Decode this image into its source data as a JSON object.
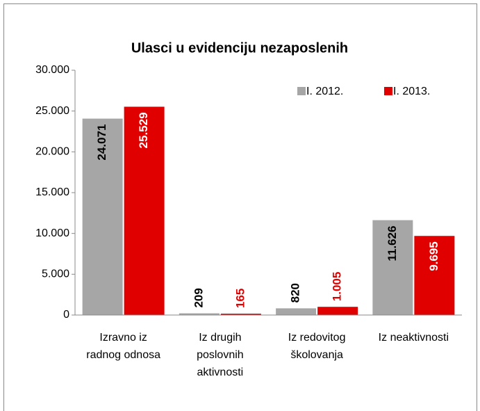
{
  "chart_data": {
    "type": "bar",
    "title": "Ulasci u evidenciju nezaposlenih",
    "categories": [
      "Izravno iz radnog odnosa",
      "Iz drugih poslovnih aktivnosti",
      "Iz redovitog školovanja",
      "Iz neaktivnosti"
    ],
    "series": [
      {
        "name": "I. 2012.",
        "color": "#a6a6a6",
        "values": [
          24071,
          209,
          820,
          11626
        ],
        "value_labels": [
          "24.071",
          "209",
          "820",
          "11.626"
        ]
      },
      {
        "name": "I. 2013.",
        "color": "#e00000",
        "values": [
          25529,
          165,
          1005,
          9695
        ],
        "value_labels": [
          "25.529",
          "165",
          "1.005",
          "9.695"
        ]
      }
    ],
    "ylim": [
      0,
      30000
    ],
    "yticks": [
      0,
      {
        "value": 5000,
        "label": "5.000"
      },
      {
        "value": 10000,
        "label": "10.000"
      },
      {
        "value": 15000,
        "label": "15.000"
      },
      {
        "value": 20000,
        "label": "20.000"
      },
      {
        "value": 25000,
        "label": "25.000"
      },
      {
        "value": 30000,
        "label": "30.000"
      }
    ],
    "legend": "top-right"
  }
}
